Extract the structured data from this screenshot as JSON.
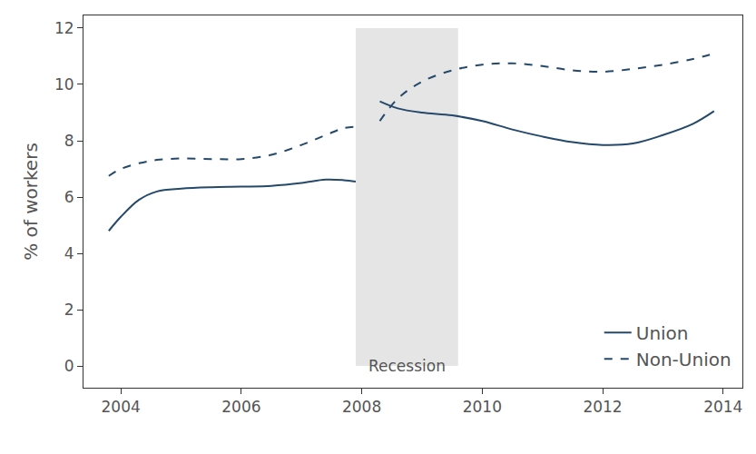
{
  "chart_data": {
    "type": "line",
    "y_label": "% of workers",
    "x": [
      2003.8,
      2004.0,
      2004.3,
      2004.6,
      2005.0,
      2005.5,
      2006.0,
      2006.5,
      2007.0,
      2007.4,
      2007.7,
      2007.9,
      2008.1,
      2008.3,
      2008.6,
      2009.0,
      2009.5,
      2010.0,
      2010.5,
      2011.0,
      2011.5,
      2012.0,
      2012.5,
      2013.0,
      2013.5,
      2013.85
    ],
    "series": [
      {
        "name": "Union",
        "color": "#24496b",
        "line_style": "solid",
        "values": [
          4.8,
          5.3,
          5.9,
          6.2,
          6.3,
          6.35,
          6.37,
          6.4,
          6.5,
          6.62,
          6.6,
          6.55,
          null,
          9.4,
          9.15,
          9.0,
          8.9,
          8.7,
          8.4,
          8.15,
          7.95,
          7.85,
          7.9,
          8.2,
          8.6,
          9.05
        ]
      },
      {
        "name": "Non-Union",
        "color": "#24496b",
        "line_style": "dash",
        "values": [
          6.75,
          7.0,
          7.2,
          7.32,
          7.37,
          7.35,
          7.35,
          7.5,
          7.85,
          8.2,
          8.45,
          8.5,
          null,
          8.7,
          9.5,
          10.1,
          10.5,
          10.7,
          10.75,
          10.65,
          10.5,
          10.45,
          10.55,
          10.7,
          10.9,
          11.1
        ]
      }
    ],
    "shaded_regions": [
      {
        "x0": 2007.9,
        "x1": 2009.6,
        "label": "Recession",
        "color": "#e5e5e5"
      }
    ],
    "xlim": [
      2003.38,
      2014.32
    ],
    "xticks": [
      2004,
      2006,
      2008,
      2010,
      2012,
      2014
    ],
    "ylim": [
      -0.77,
      12.45
    ],
    "yticks": [
      0,
      2,
      4,
      6,
      8,
      10,
      12
    ],
    "grid": false,
    "legend": "bottom-right"
  }
}
